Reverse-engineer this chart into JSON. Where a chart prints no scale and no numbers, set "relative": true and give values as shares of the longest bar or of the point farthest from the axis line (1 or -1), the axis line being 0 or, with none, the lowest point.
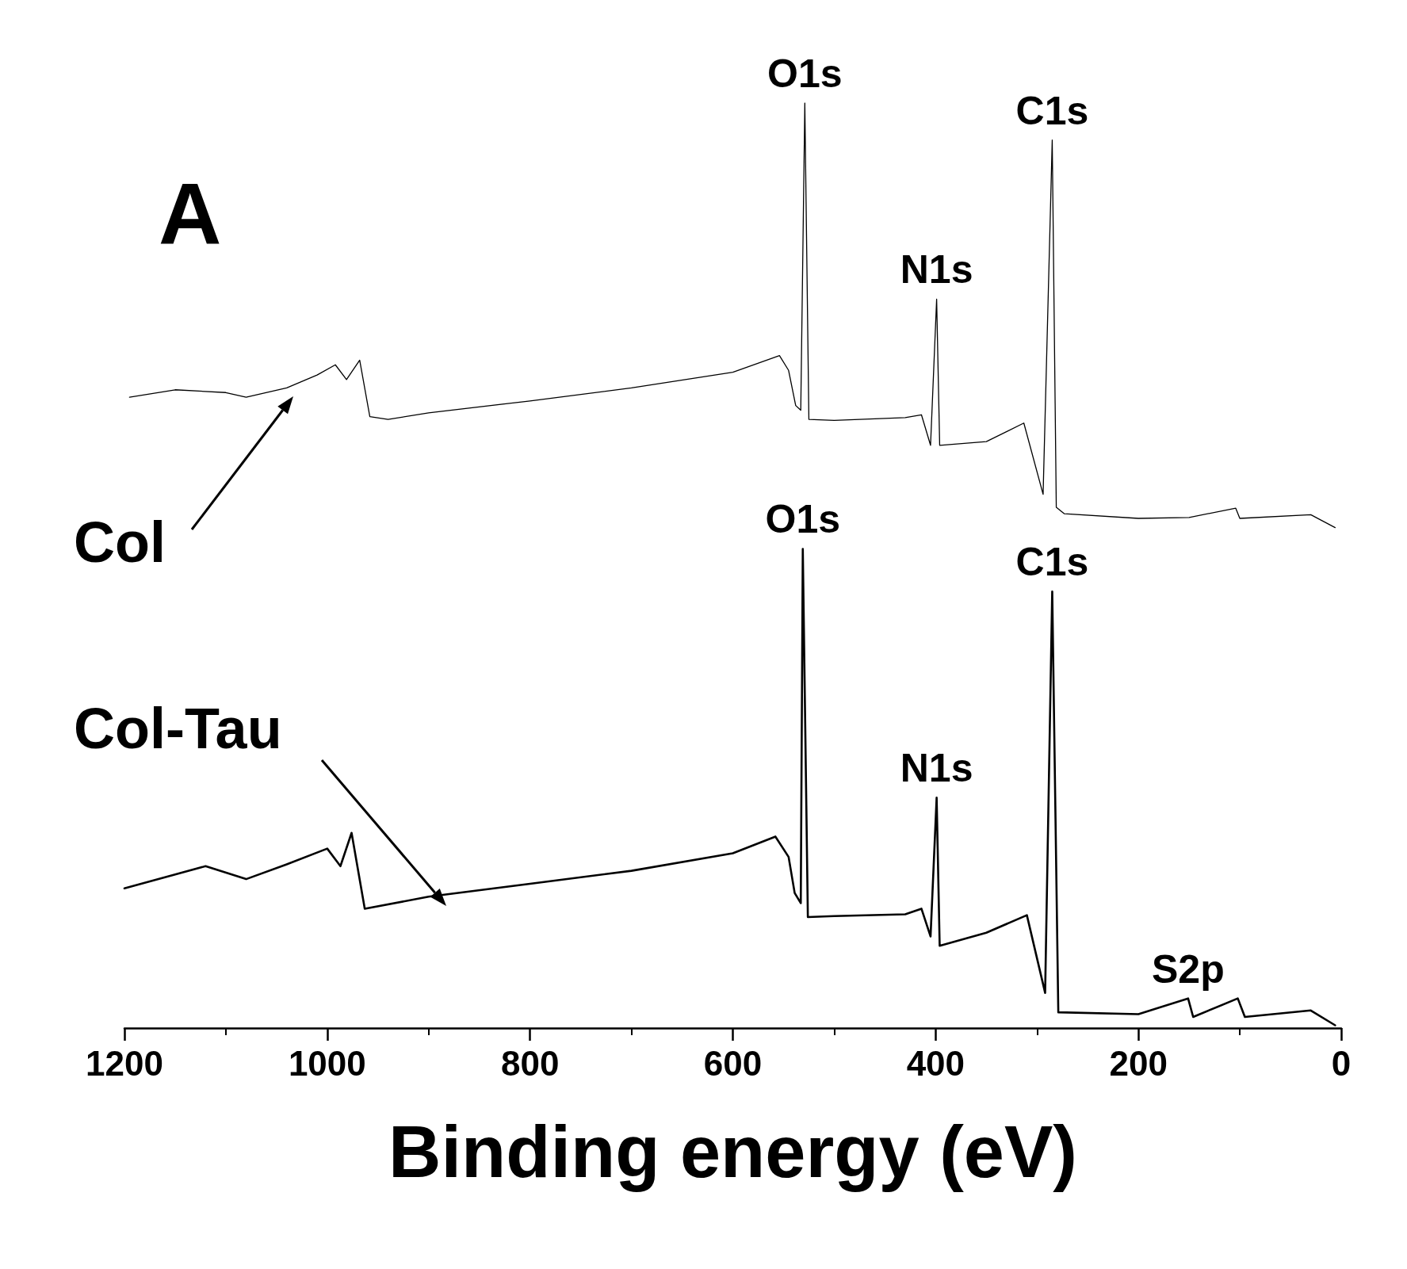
{
  "chart_data": {
    "type": "line",
    "relative": true,
    "xlabel": "Binding energy (eV)",
    "xlim": [
      1200,
      0
    ],
    "xticks": [
      1200,
      1000,
      800,
      600,
      400,
      200,
      0
    ],
    "grid": false,
    "legend": false,
    "marker": "none",
    "line_style": "solid",
    "title": "A",
    "annotations": [
      {
        "text": "O1s",
        "x": 529,
        "y": 1.0
      },
      {
        "text": "C1s",
        "x": 285,
        "y": 0.96
      },
      {
        "text": "N1s",
        "x": 399,
        "y": 0.788
      },
      {
        "text": "O1s",
        "x": 531,
        "y": 0.518
      },
      {
        "text": "C1s",
        "x": 285,
        "y": 0.472
      },
      {
        "text": "N1s",
        "x": 399,
        "y": 0.249
      },
      {
        "text": "S2p",
        "x": 151,
        "y": 0.032
      }
    ],
    "series": [
      {
        "name": "Col",
        "color": "#000000",
        "x": [
          1195,
          1150,
          1100,
          1080,
          1040,
          1010,
          992,
          981,
          968,
          958,
          940,
          900,
          800,
          700,
          600,
          554,
          545,
          538,
          533,
          529,
          525,
          500,
          430,
          414,
          405,
          399,
          396,
          350,
          313,
          294,
          285,
          281,
          273,
          200,
          150,
          104,
          100,
          30,
          6
        ],
        "values": [
          0.682,
          0.69,
          0.687,
          0.682,
          0.692,
          0.706,
          0.717,
          0.701,
          0.722,
          0.661,
          0.658,
          0.665,
          0.678,
          0.692,
          0.709,
          0.727,
          0.711,
          0.673,
          0.668,
          1.0,
          0.658,
          0.657,
          0.66,
          0.663,
          0.63,
          0.788,
          0.63,
          0.634,
          0.654,
          0.577,
          0.96,
          0.563,
          0.556,
          0.551,
          0.552,
          0.562,
          0.551,
          0.555,
          0.541
        ]
      },
      {
        "name": "Col-Tau",
        "color": "#000000",
        "x": [
          1200,
          1150,
          1120,
          1080,
          1040,
          1000,
          987,
          976,
          963,
          900,
          800,
          700,
          600,
          558,
          545,
          539,
          533,
          531,
          526,
          500,
          430,
          414,
          405,
          399,
          396,
          350,
          310,
          292,
          285,
          279,
          200,
          151,
          146,
          102,
          95,
          30,
          6
        ],
        "values": [
          0.151,
          0.166,
          0.175,
          0.161,
          0.177,
          0.194,
          0.175,
          0.211,
          0.129,
          0.142,
          0.156,
          0.17,
          0.189,
          0.207,
          0.185,
          0.146,
          0.135,
          0.518,
          0.12,
          0.121,
          0.123,
          0.129,
          0.099,
          0.249,
          0.089,
          0.103,
          0.122,
          0.038,
          0.472,
          0.017,
          0.015,
          0.032,
          0.012,
          0.032,
          0.012,
          0.019,
          0.003
        ]
      }
    ]
  }
}
